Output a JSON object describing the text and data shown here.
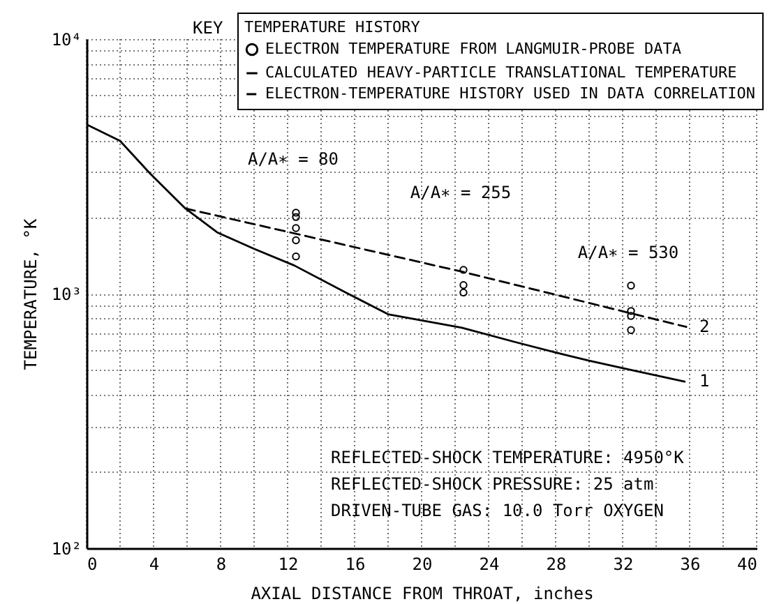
{
  "chart_data": {
    "type": "line",
    "xlabel": "AXIAL DISTANCE FROM THROAT, inches",
    "ylabel": "TEMPERATURE, °K",
    "legend_title": "TEMPERATURE HISTORY",
    "legend": "top right",
    "log": "y",
    "grid": true,
    "xlim": [
      0,
      40
    ],
    "ylim": [
      100,
      10000
    ],
    "xticks": [
      0,
      {
        "value": 2,
        "label": null
      },
      4,
      {
        "value": 6,
        "label": null
      },
      8,
      {
        "value": 10,
        "label": null
      },
      12,
      {
        "value": 14,
        "label": null
      },
      16,
      {
        "value": 18,
        "label": null
      },
      20,
      {
        "value": 22,
        "label": null
      },
      24,
      {
        "value": 26,
        "label": null
      },
      28,
      {
        "value": 30,
        "label": null
      },
      32,
      {
        "value": 34,
        "label": null
      },
      36,
      {
        "value": 38,
        "label": null
      },
      40
    ],
    "yticks": [
      {
        "value": 100,
        "label": "10²"
      },
      {
        "value": 200,
        "label": null
      },
      {
        "value": 300,
        "label": null
      },
      {
        "value": 400,
        "label": null
      },
      {
        "value": 500,
        "label": null
      },
      {
        "value": 600,
        "label": null
      },
      {
        "value": 700,
        "label": null
      },
      {
        "value": 800,
        "label": null
      },
      {
        "value": 900,
        "label": null
      },
      {
        "value": 1000,
        "label": "10³"
      },
      {
        "value": 2000,
        "label": null
      },
      {
        "value": 3000,
        "label": null
      },
      {
        "value": 4000,
        "label": null
      },
      {
        "value": 5000,
        "label": null
      },
      {
        "value": 6000,
        "label": null
      },
      {
        "value": 7000,
        "label": null
      },
      {
        "value": 8000,
        "label": null
      },
      {
        "value": 9000,
        "label": null
      },
      {
        "value": 10000,
        "label": "10⁴"
      }
    ],
    "series": [
      {
        "name": "ELECTRON TEMPERATURE FROM LANGMUIR-PROBE DATA",
        "type": "scatter",
        "marker": "circle",
        "color": "#000000",
        "x": [
          12.5,
          12.5,
          12.5,
          12.5,
          12.5,
          22.5,
          22.5,
          22.5,
          32.5,
          32.5,
          32.5,
          32.5
        ],
        "values": [
          2080,
          2000,
          1810,
          1620,
          1400,
          1240,
          1080,
          1010,
          1075,
          855,
          817,
          719
        ]
      },
      {
        "name": "CALCULATED HEAVY-PARTICLE TRANSLATIONAL TEMPERATURE",
        "marker": "none",
        "line_style": "solid",
        "color": "#000000",
        "x": [
          0,
          2,
          3.8,
          5.9,
          7.8,
          10,
          12.4,
          15.6,
          18,
          20,
          22.4,
          25.6,
          28,
          30,
          32.3,
          35.7
        ],
        "values": [
          4620,
          3980,
          2960,
          2160,
          1740,
          1500,
          1290,
          1000,
          830,
          785,
          735,
          645,
          587,
          545,
          505,
          451
        ]
      },
      {
        "name": "ELECTRON-TEMPERATURE HISTORY USED IN DATA CORRELATION",
        "marker": "none",
        "line_style": "dashed",
        "color": "#000000",
        "x": [
          5.9,
          22.4,
          35.8
        ],
        "values": [
          2160,
          1220,
          740
        ]
      }
    ],
    "annotations": [
      "KEY",
      "A/A∗ = 80",
      "A/A∗ = 255",
      "A/A∗ = 530",
      "1",
      "2",
      "REFLECTED-SHOCK TEMPERATURE:  4950°K",
      "REFLECTED-SHOCK PRESSURE:  25 atm",
      "DRIVEN-TUBE GAS:  10.0 Torr OXYGEN"
    ]
  }
}
